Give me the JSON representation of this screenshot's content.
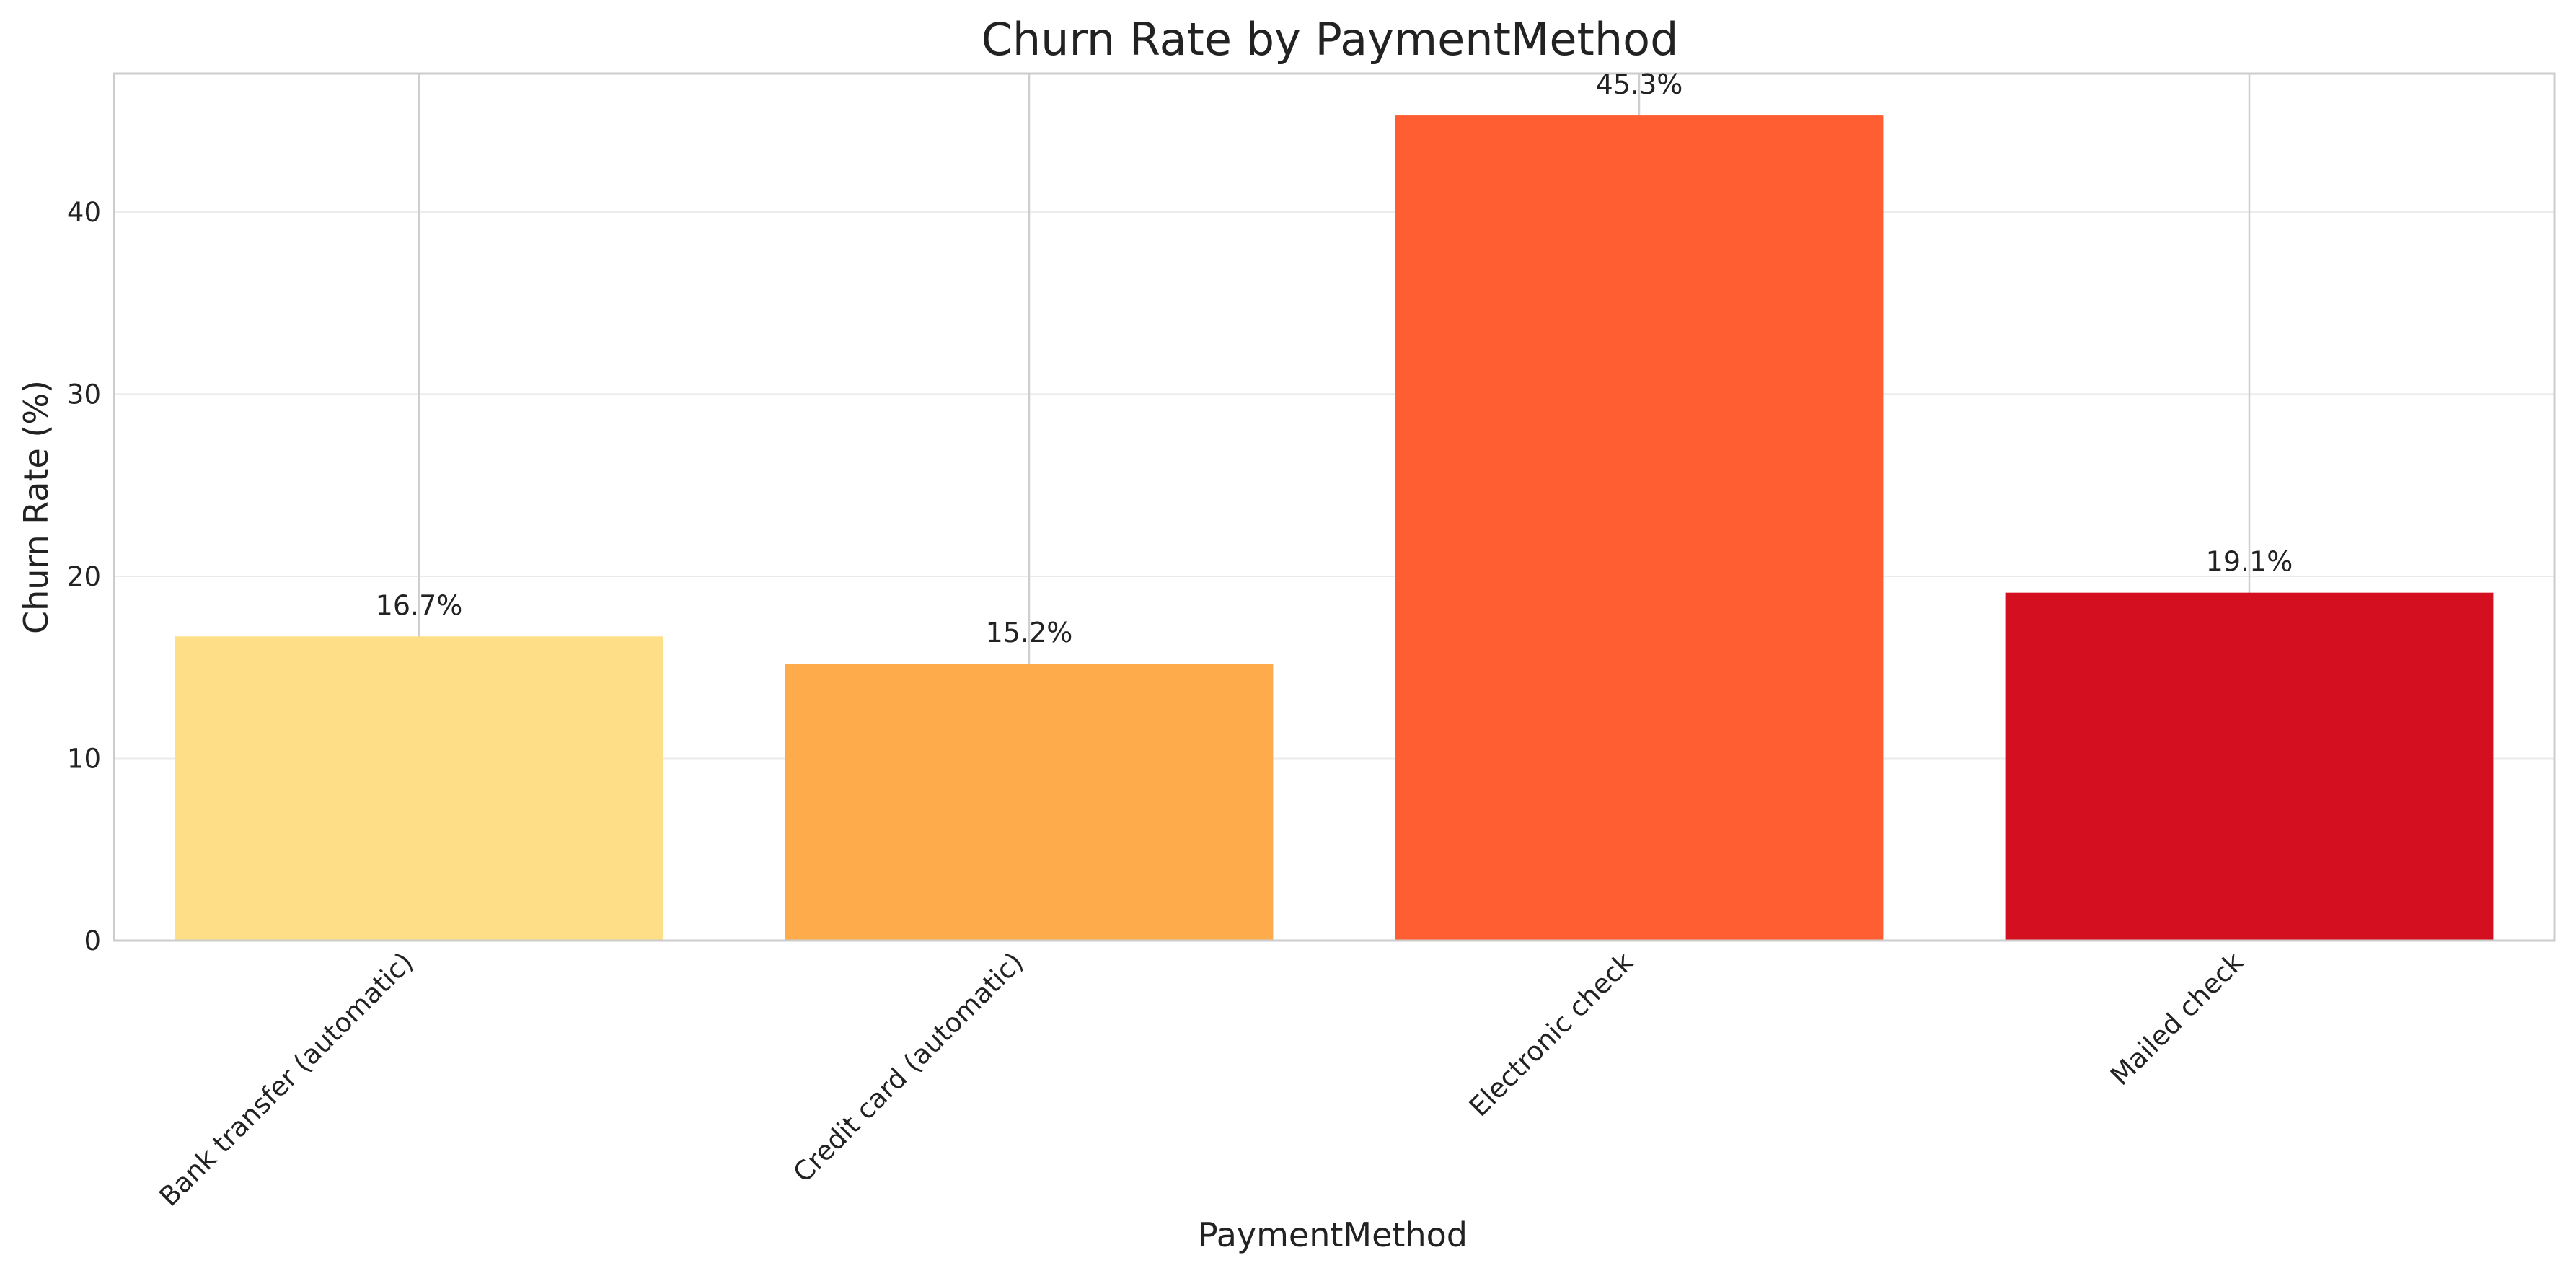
{
  "chart_data": {
    "type": "bar",
    "title": "Churn Rate by PaymentMethod",
    "xlabel": "PaymentMethod",
    "ylabel": "Churn Rate (%)",
    "categories": [
      "Bank transfer (automatic)",
      "Credit card (automatic)",
      "Electronic check",
      "Mailed check"
    ],
    "values": [
      16.7,
      15.2,
      45.3,
      19.1
    ],
    "value_labels": [
      "16.7%",
      "15.2%",
      "45.3%",
      "19.1%"
    ],
    "colors": [
      "#FEDF88",
      "#FEAB4C",
      "#FE5E31",
      "#D41020"
    ],
    "ylim": [
      0,
      47.6
    ],
    "yticks": [
      0,
      10,
      20,
      30,
      40
    ],
    "ytick_labels": [
      "0",
      "10",
      "20",
      "30",
      "40"
    ],
    "grid": true,
    "legend": "none"
  }
}
